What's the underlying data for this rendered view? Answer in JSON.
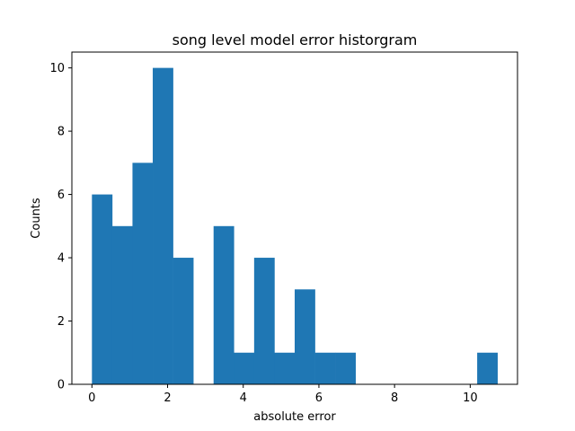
{
  "chart_data": {
    "type": "bar",
    "title": "song level model error historgram",
    "xlabel": "absolute error",
    "ylabel": "Counts",
    "xlim": [
      -0.53,
      11.25
    ],
    "ylim": [
      0,
      10.5
    ],
    "grid": false,
    "bar_color": "#1f77b4",
    "bins": [
      {
        "x0": 0.0,
        "x1": 0.536,
        "count": 6
      },
      {
        "x0": 0.536,
        "x1": 1.072,
        "count": 5
      },
      {
        "x0": 1.072,
        "x1": 1.608,
        "count": 7
      },
      {
        "x0": 1.608,
        "x1": 2.144,
        "count": 10
      },
      {
        "x0": 2.144,
        "x1": 2.68,
        "count": 4
      },
      {
        "x0": 2.68,
        "x1": 3.216,
        "count": 0
      },
      {
        "x0": 3.216,
        "x1": 3.752,
        "count": 5
      },
      {
        "x0": 3.752,
        "x1": 4.288,
        "count": 1
      },
      {
        "x0": 4.288,
        "x1": 4.824,
        "count": 4
      },
      {
        "x0": 4.824,
        "x1": 5.36,
        "count": 1
      },
      {
        "x0": 5.36,
        "x1": 5.896,
        "count": 3
      },
      {
        "x0": 5.896,
        "x1": 6.432,
        "count": 1
      },
      {
        "x0": 6.432,
        "x1": 6.968,
        "count": 1
      },
      {
        "x0": 6.968,
        "x1": 7.504,
        "count": 0
      },
      {
        "x0": 7.504,
        "x1": 8.04,
        "count": 0
      },
      {
        "x0": 8.04,
        "x1": 8.576,
        "count": 0
      },
      {
        "x0": 8.576,
        "x1": 9.112,
        "count": 0
      },
      {
        "x0": 9.112,
        "x1": 9.648,
        "count": 0
      },
      {
        "x0": 9.648,
        "x1": 10.184,
        "count": 0
      },
      {
        "x0": 10.184,
        "x1": 10.72,
        "count": 1
      }
    ],
    "xticks": [
      {
        "value": 0,
        "label": "0"
      },
      {
        "value": 2,
        "label": "2"
      },
      {
        "value": 4,
        "label": "4"
      },
      {
        "value": 6,
        "label": "6"
      },
      {
        "value": 8,
        "label": "8"
      },
      {
        "value": 10,
        "label": "10"
      }
    ],
    "yticks": [
      {
        "value": 0,
        "label": "0"
      },
      {
        "value": 2,
        "label": "2"
      },
      {
        "value": 4,
        "label": "4"
      },
      {
        "value": 6,
        "label": "6"
      },
      {
        "value": 8,
        "label": "8"
      },
      {
        "value": 10,
        "label": "10"
      }
    ]
  }
}
